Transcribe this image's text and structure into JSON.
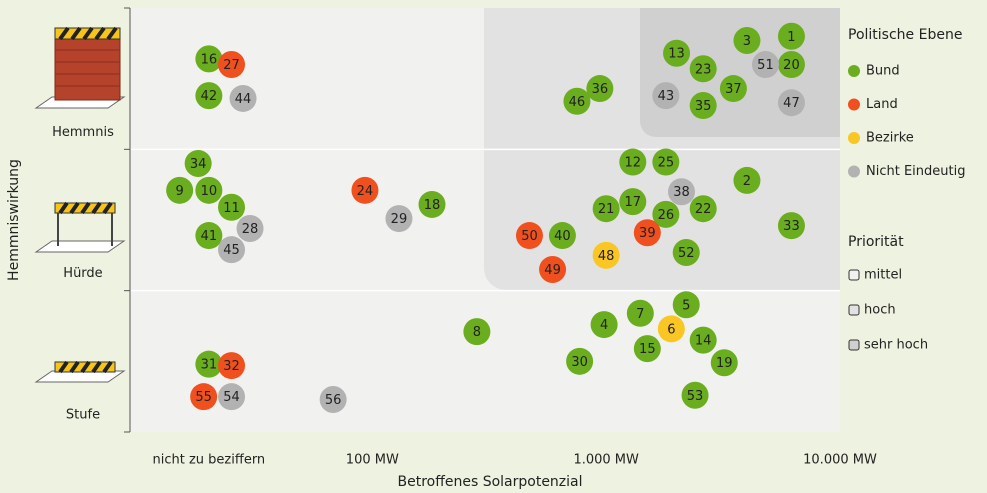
{
  "chart_data": {
    "type": "scatter",
    "x_label": "Betroffenes Solarpotenzial",
    "y_label": "Hemmniswirkung",
    "xscale": "log",
    "xlim": [
      9.2,
      10000
    ],
    "xticks": [
      {
        "value": 20,
        "label": "nicht zu beziffern"
      },
      {
        "value": 100,
        "label": "100 MW"
      },
      {
        "value": 1000,
        "label": "1.000 MW"
      },
      {
        "value": 10000,
        "label": "10.000 MW"
      }
    ],
    "ylim": [
      0,
      3
    ],
    "yticks": [
      0,
      1,
      2,
      3
    ],
    "y_categories": [
      "Stufe",
      "Hürde",
      "Hemmnis"
    ],
    "grid": true,
    "legend_title": "Politische Ebene",
    "series": [
      {
        "name": "Bund",
        "color": "#6aad1e",
        "labels": [
          "1",
          "3",
          "13",
          "23",
          "20",
          "37",
          "35",
          "36",
          "46",
          "16",
          "42",
          "34",
          "9",
          "10",
          "11",
          "18",
          "41",
          "12",
          "25",
          "2",
          "17",
          "21",
          "26",
          "22",
          "33",
          "40",
          "52",
          "5",
          "7",
          "4",
          "14",
          "8",
          "15",
          "19",
          "30",
          "31",
          "53"
        ],
        "x": [
          6200,
          4000,
          2000,
          2600,
          6200,
          3500,
          2600,
          940,
          750,
          20,
          20,
          18,
          15,
          20,
          25,
          180,
          20,
          1300,
          1800,
          4000,
          1300,
          1000,
          1800,
          2600,
          6200,
          650,
          2200,
          2200,
          1400,
          980,
          2600,
          280,
          1500,
          3200,
          770,
          20,
          2400
        ],
        "y": [
          2.8,
          2.77,
          2.68,
          2.57,
          2.6,
          2.43,
          2.31,
          2.43,
          2.34,
          2.64,
          2.38,
          1.9,
          1.71,
          1.71,
          1.59,
          1.61,
          1.39,
          1.91,
          1.91,
          1.78,
          1.63,
          1.58,
          1.54,
          1.58,
          1.46,
          1.39,
          1.27,
          0.9,
          0.84,
          0.76,
          0.65,
          0.71,
          0.59,
          0.49,
          0.5,
          0.48,
          0.26
        ]
      },
      {
        "name": "Land",
        "color": "#f0501e",
        "labels": [
          "27",
          "24",
          "50",
          "39",
          "49",
          "32",
          "55"
        ],
        "x": [
          25,
          93,
          470,
          1500,
          590,
          25,
          19
        ],
        "y": [
          2.6,
          1.71,
          1.39,
          1.41,
          1.15,
          0.47,
          0.25
        ]
      },
      {
        "name": "Bezirke",
        "color": "#f9c623",
        "labels": [
          "48",
          "6"
        ],
        "x": [
          1000,
          1900
        ],
        "y": [
          1.25,
          0.73
        ]
      },
      {
        "name": "Nicht Eindeutig",
        "color": "#b2b2b2",
        "labels": [
          "51",
          "43",
          "47",
          "44",
          "29",
          "28",
          "45",
          "38",
          "54",
          "56"
        ],
        "x": [
          4800,
          1800,
          6200,
          28,
          130,
          30,
          25,
          2100,
          25,
          68
        ],
        "y": [
          2.6,
          2.38,
          2.33,
          2.36,
          1.51,
          1.44,
          1.29,
          1.7,
          0.25,
          0.23
        ]
      }
    ],
    "priority": {
      "title": "Priorität",
      "items": [
        {
          "name": "mittel",
          "color": "#f1f1ef"
        },
        {
          "name": "hoch",
          "color": "#e2e2e2"
        },
        {
          "name": "sehr hoch",
          "color": "#d0d0d0"
        }
      ]
    }
  }
}
